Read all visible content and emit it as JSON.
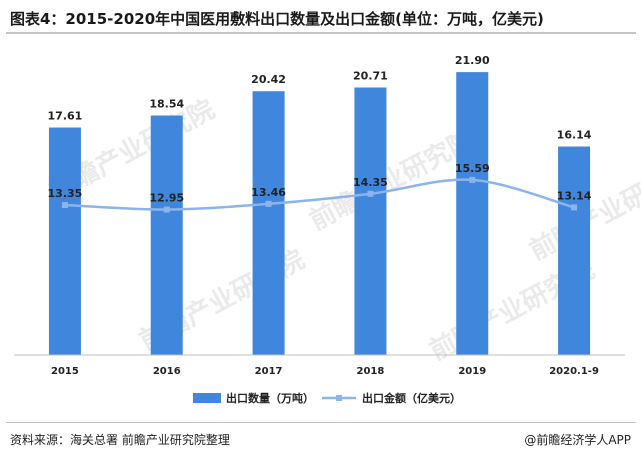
{
  "title": "图表4：2015-2020年中国医用敷料出口数量及出口金额(单位：万吨，亿美元)",
  "footer": {
    "source": "资料来源：海关总署 前瞻产业研究院整理",
    "brand": "@前瞻经济学人APP"
  },
  "watermark": "前瞻产业研究院",
  "colors": {
    "bar": "#3f86dc",
    "line": "#8cb4ec",
    "text": "#222222"
  },
  "chart_data": {
    "type": "bar",
    "categories": [
      "2015",
      "2016",
      "2017",
      "2018",
      "2019",
      "2020.1-9"
    ],
    "series": [
      {
        "name": "出口数量（万吨）",
        "type": "bar",
        "axis": "left",
        "values": [
          17.61,
          18.54,
          20.42,
          20.71,
          21.9,
          16.14
        ],
        "labels": [
          "17.61",
          "18.54",
          "20.42",
          "20.71",
          "21.90",
          "16.14"
        ]
      },
      {
        "name": "出口金额（亿美元）",
        "type": "line",
        "axis": "right",
        "smooth": true,
        "values": [
          13.35,
          12.95,
          13.46,
          14.35,
          15.59,
          13.14
        ],
        "labels": [
          "13.35",
          "12.95",
          "13.46",
          "14.35",
          "15.59",
          "13.14"
        ]
      }
    ],
    "ylim_left": [
      0,
      24
    ],
    "ylim_right": [
      0,
      27.6
    ],
    "grid": false,
    "legend_position": "bottom"
  }
}
